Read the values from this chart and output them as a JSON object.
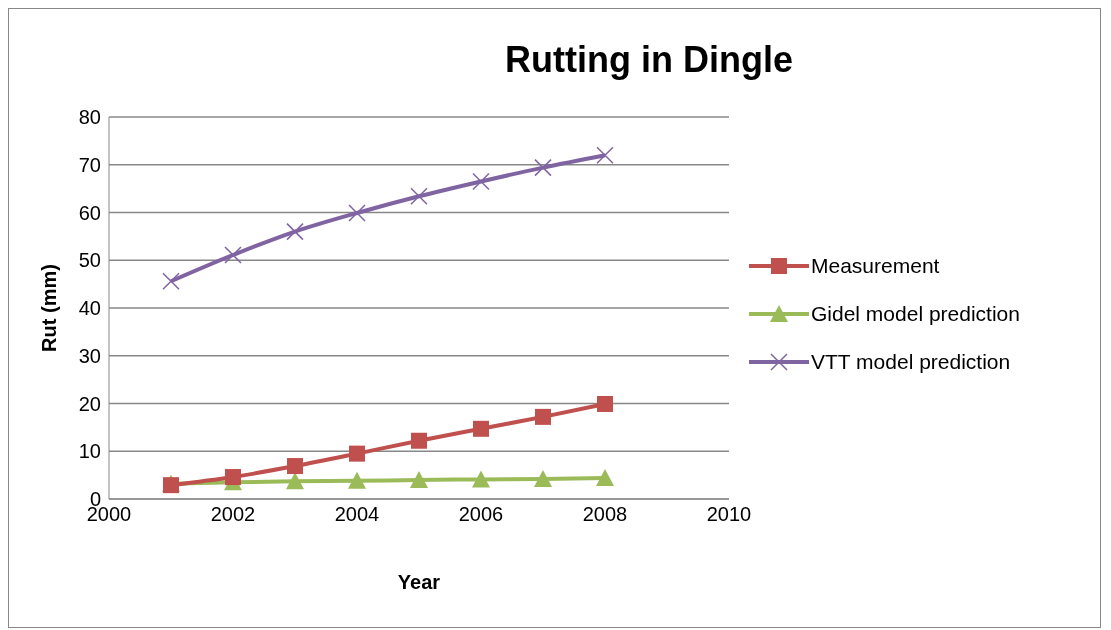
{
  "chart_data": {
    "type": "line",
    "title": "Rutting in Dingle",
    "xlabel": "Year",
    "ylabel": "Rut (mm)",
    "x": [
      2001,
      2002,
      2003,
      2004,
      2005,
      2006,
      2007,
      2008
    ],
    "series": [
      {
        "name": "Measurement",
        "color": "#c0504d",
        "marker": "square",
        "values": [
          2.9,
          4.6,
          6.9,
          9.5,
          12.2,
          14.7,
          17.2,
          19.9
        ]
      },
      {
        "name": "Gidel model prediction",
        "color": "#9bbb59",
        "marker": "triangle",
        "values": [
          3.2,
          3.5,
          3.7,
          3.8,
          4.0,
          4.1,
          4.2,
          4.4
        ]
      },
      {
        "name": "VTT model prediction",
        "color": "#8064a2",
        "marker": "cross",
        "values": [
          45.6,
          51.1,
          56.0,
          59.9,
          63.4,
          66.5,
          69.4,
          72.0
        ]
      }
    ],
    "xlim": [
      2000,
      2010
    ],
    "xticks": [
      2000,
      2002,
      2004,
      2006,
      2008,
      2010
    ],
    "ylim": [
      0,
      80
    ],
    "yticks": [
      0,
      10,
      20,
      30,
      40,
      50,
      60,
      70,
      80
    ],
    "grid": "y",
    "legend": "right",
    "line_style": "solid"
  }
}
